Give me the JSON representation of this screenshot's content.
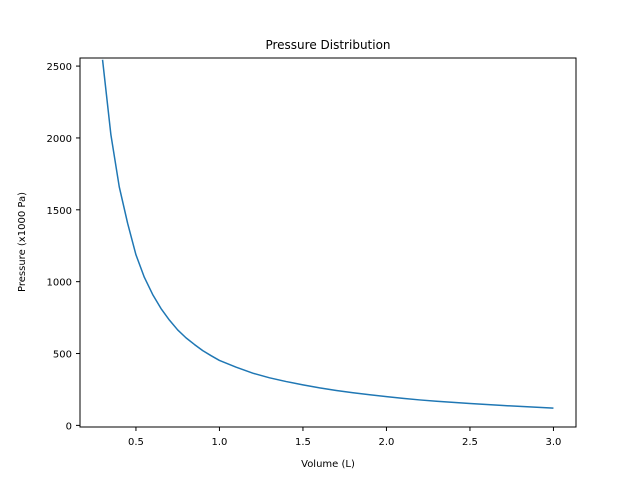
{
  "chart_data": {
    "type": "line",
    "title": "Pressure Distribution",
    "xlabel": "Volume (L)",
    "ylabel": "Pressure (x1000 Pa)",
    "xlim": [
      0.165,
      3.135
    ],
    "ylim": [
      -11.25,
      2556.25
    ],
    "grid": false,
    "x_ticks": [
      0.5,
      1.0,
      1.5,
      2.0,
      2.5,
      3.0
    ],
    "x_tick_labels": [
      "0.5",
      "1.0",
      "1.5",
      "2.0",
      "2.5",
      "3.0"
    ],
    "y_ticks": [
      0,
      500,
      1000,
      1500,
      2000,
      2500
    ],
    "y_tick_labels": [
      "0",
      "500",
      "1000",
      "1500",
      "2000",
      "2500"
    ],
    "series": [
      {
        "color": "#1f77b4",
        "x": [
          0.3,
          0.35,
          0.4,
          0.45,
          0.5,
          0.55,
          0.6,
          0.65,
          0.7,
          0.75,
          0.8,
          0.85,
          0.9,
          0.95,
          1.0,
          1.1,
          1.2,
          1.3,
          1.4,
          1.5,
          1.6,
          1.7,
          1.8,
          1.9,
          2.0,
          2.1,
          2.2,
          2.3,
          2.4,
          2.5,
          2.6,
          2.7,
          2.8,
          2.9,
          3.0
        ],
        "y": [
          2544,
          2022,
          1660,
          1407,
          1187,
          1031,
          911,
          813,
          733,
          664,
          609,
          563,
          520,
          485,
          452,
          405,
          363,
          331,
          305,
          282,
          261,
          243,
          227,
          213,
          200,
          188,
          177,
          168,
          160,
          152,
          145,
          138,
          132,
          126,
          120
        ]
      }
    ]
  }
}
